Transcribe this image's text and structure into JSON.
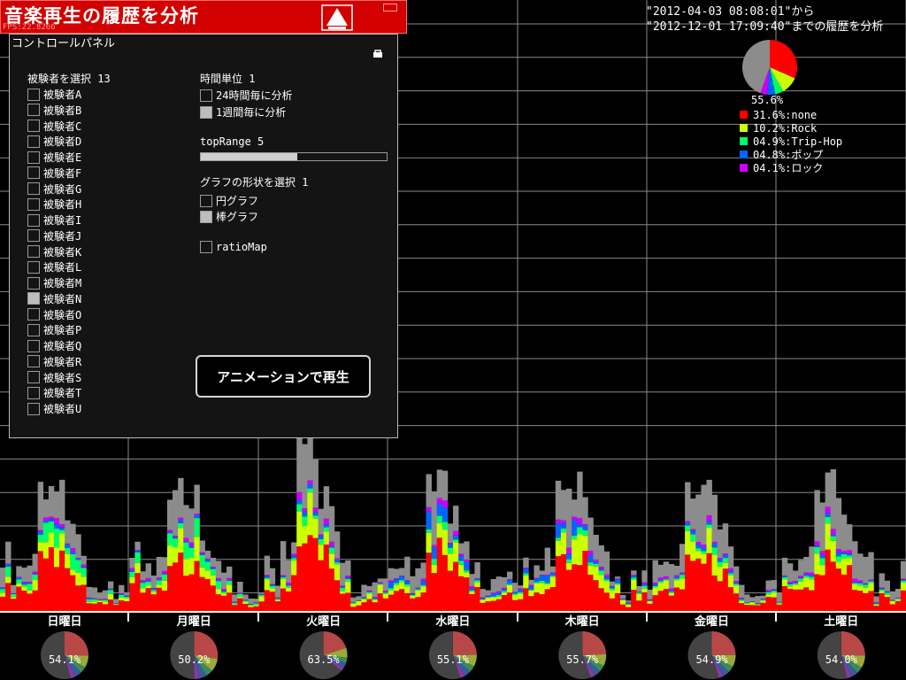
{
  "header": {
    "title": "音楽再生の履歴を分析",
    "fps": "FPS:22.8266"
  },
  "panel": {
    "title": "コントロールパネル",
    "subject_label": "被験者を選択 13",
    "subjects": [
      {
        "label": "被験者A",
        "checked": false
      },
      {
        "label": "被験者B",
        "checked": false
      },
      {
        "label": "被験者C",
        "checked": false
      },
      {
        "label": "被験者D",
        "checked": false
      },
      {
        "label": "被験者E",
        "checked": false
      },
      {
        "label": "被験者F",
        "checked": false
      },
      {
        "label": "被験者G",
        "checked": false
      },
      {
        "label": "被験者H",
        "checked": false
      },
      {
        "label": "被験者I",
        "checked": false
      },
      {
        "label": "被験者J",
        "checked": false
      },
      {
        "label": "被験者K",
        "checked": false
      },
      {
        "label": "被験者L",
        "checked": false
      },
      {
        "label": "被験者M",
        "checked": false
      },
      {
        "label": "被験者N",
        "checked": true
      },
      {
        "label": "被験者O",
        "checked": false
      },
      {
        "label": "被験者P",
        "checked": false
      },
      {
        "label": "被験者Q",
        "checked": false
      },
      {
        "label": "被験者R",
        "checked": false
      },
      {
        "label": "被験者S",
        "checked": false
      },
      {
        "label": "被験者T",
        "checked": false
      },
      {
        "label": "被験者U",
        "checked": false
      }
    ],
    "time_unit_label": "時間単位 1",
    "time_units": [
      {
        "label": "24時間毎に分析",
        "checked": false
      },
      {
        "label": " 1週間毎に分析",
        "checked": true
      }
    ],
    "top_range_label": "topRange 5",
    "top_range_fraction": 0.52,
    "graph_shape_label": "グラフの形状を選択 1",
    "graph_shapes": [
      {
        "label": "円グラフ",
        "checked": false
      },
      {
        "label": "棒グラフ",
        "checked": true
      }
    ],
    "ratio_map": {
      "label": "ratioMap",
      "checked": false
    },
    "animate_button": "アニメーションで再生"
  },
  "range": {
    "from": "\"2012-04-03 08:08:01\"から",
    "to": "\"2012-12-01 17:09:40\"までの履歴を分析"
  },
  "colors": {
    "none": "#ff0000",
    "rock": "#ccff00",
    "trip_hop": "#00ff66",
    "pop": "#0066ff",
    "rock_jp": "#cc00ff",
    "other": "#8c8c8c"
  },
  "summary": {
    "pie_label": "55.6%",
    "legend": [
      {
        "text": "31.6%:none",
        "color": "#ff0000",
        "value": 31.6
      },
      {
        "text": "10.2%:Rock",
        "color": "#ccff00",
        "value": 10.2
      },
      {
        "text": "04.9%:Trip-Hop",
        "color": "#00ff66",
        "value": 4.9
      },
      {
        "text": "04.8%:ポップ",
        "color": "#0066ff",
        "value": 4.8
      },
      {
        "text": "04.1%:ロック",
        "color": "#cc00ff",
        "value": 4.1
      }
    ]
  },
  "days": [
    {
      "label": "日曜日",
      "pct": "54.1%",
      "value": 54.1
    },
    {
      "label": "月曜日",
      "pct": "50.2%",
      "value": 50.2
    },
    {
      "label": "火曜日",
      "pct": "63.5%",
      "value": 63.5
    },
    {
      "label": "水曜日",
      "pct": "55.1%",
      "value": 55.1
    },
    {
      "label": "木曜日",
      "pct": "55.7%",
      "value": 55.7
    },
    {
      "label": "金曜日",
      "pct": "54.9%",
      "value": 54.9
    },
    {
      "label": "土曜日",
      "pct": "54.0%",
      "value": 54.0
    }
  ],
  "chart_data": {
    "type": "bar",
    "stacked": true,
    "x": "hour of week (168)",
    "series": [
      {
        "name": "none",
        "color": "#ff0000"
      },
      {
        "name": "Rock",
        "color": "#ccff00"
      },
      {
        "name": "Trip-Hop",
        "color": "#00ff66"
      },
      {
        "name": "ポップ",
        "color": "#0066ff"
      },
      {
        "name": "ロック",
        "color": "#cc00ff"
      }
    ],
    "grid": true
  }
}
